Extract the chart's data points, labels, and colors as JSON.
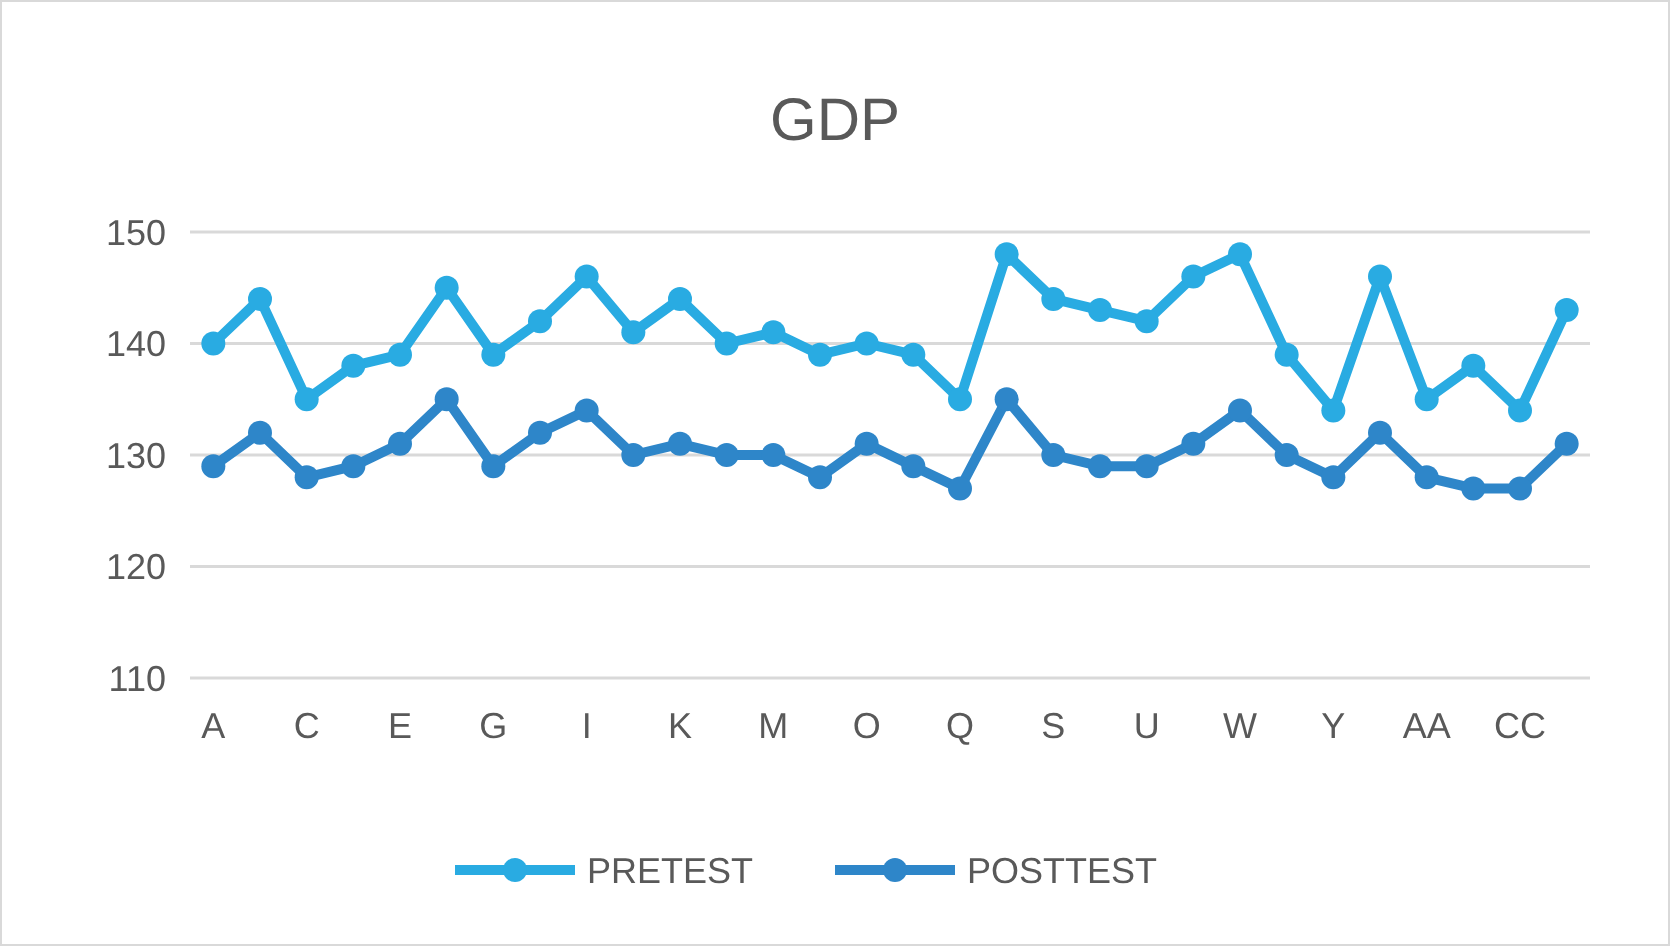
{
  "chart_data": {
    "type": "line",
    "title": "GDP",
    "categories": [
      "A",
      null,
      "C",
      null,
      "E",
      null,
      "G",
      null,
      "I",
      null,
      "K",
      null,
      "M",
      null,
      "O",
      null,
      "Q",
      null,
      "S",
      null,
      "U",
      null,
      "W",
      null,
      "Y",
      null,
      "AA",
      null,
      "CC",
      null
    ],
    "series": [
      {
        "name": "PRETEST",
        "color": "#29abe2",
        "values": [
          140,
          144,
          135,
          138,
          139,
          145,
          139,
          142,
          146,
          141,
          144,
          140,
          141,
          139,
          140,
          139,
          135,
          148,
          144,
          143,
          142,
          146,
          148,
          139,
          134,
          146,
          135,
          138,
          134,
          143
        ]
      },
      {
        "name": "POSTTEST",
        "color": "#2e86c9",
        "values": [
          129,
          132,
          128,
          129,
          131,
          135,
          129,
          132,
          134,
          130,
          131,
          130,
          130,
          128,
          131,
          129,
          127,
          135,
          130,
          129,
          129,
          131,
          134,
          130,
          128,
          132,
          128,
          127,
          127,
          131
        ]
      }
    ],
    "ylim": [
      110,
      150
    ],
    "yticks": [
      110,
      120,
      130,
      140,
      150
    ],
    "grid": "y",
    "legend": "bottom",
    "marker": "circle",
    "line_style": "solid"
  }
}
